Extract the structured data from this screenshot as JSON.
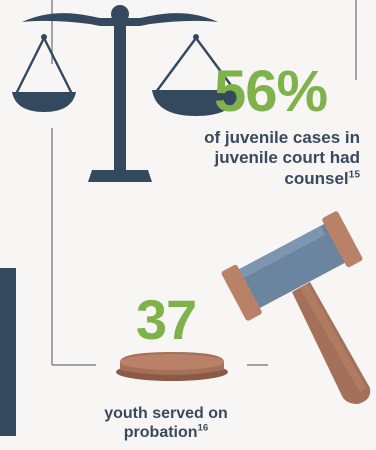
{
  "stats": [
    {
      "value": "56%",
      "label": "of juvenile cases in juvenile court had counsel",
      "footnote": "15"
    },
    {
      "value": "37",
      "label": "youth served on probation",
      "footnote": "16"
    }
  ],
  "colors": {
    "accent_green": "#7fb24a",
    "navy": "#34495e",
    "text_dark": "#3a4a5e",
    "wood": "#a5705a",
    "steel": "#6b84a0"
  },
  "icons": [
    "scales-of-justice-icon",
    "gavel-icon",
    "sound-block-icon"
  ]
}
